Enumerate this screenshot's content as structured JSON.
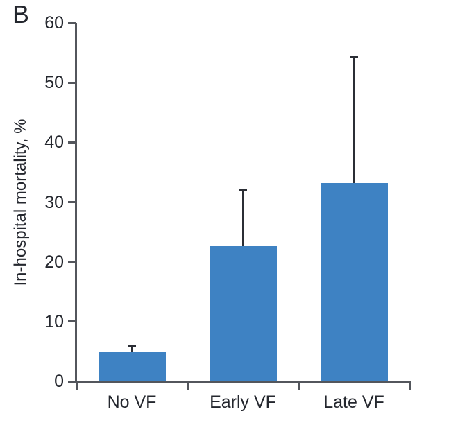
{
  "panel_label": "B",
  "colors": {
    "bar": "#3E82C3",
    "axis": "#53565C",
    "text": "#24272E",
    "error_bar": "#2B2E35",
    "background": "#FFFFFF"
  },
  "chart_data": {
    "type": "bar",
    "categories": [
      "No VF",
      "Early VF",
      "Late VF"
    ],
    "values": [
      5.0,
      22.6,
      33.2
    ],
    "errors_upper": [
      0.9,
      9.4,
      21.0
    ],
    "title": "",
    "xlabel": "",
    "ylabel": "In-hospital mortality, %",
    "ylim": [
      0,
      60
    ],
    "yticks": [
      0,
      10,
      20,
      30,
      40,
      50,
      60
    ],
    "grid": false,
    "legend": false,
    "bar_color": "#3E82C3",
    "error_direction": "upper-only"
  }
}
